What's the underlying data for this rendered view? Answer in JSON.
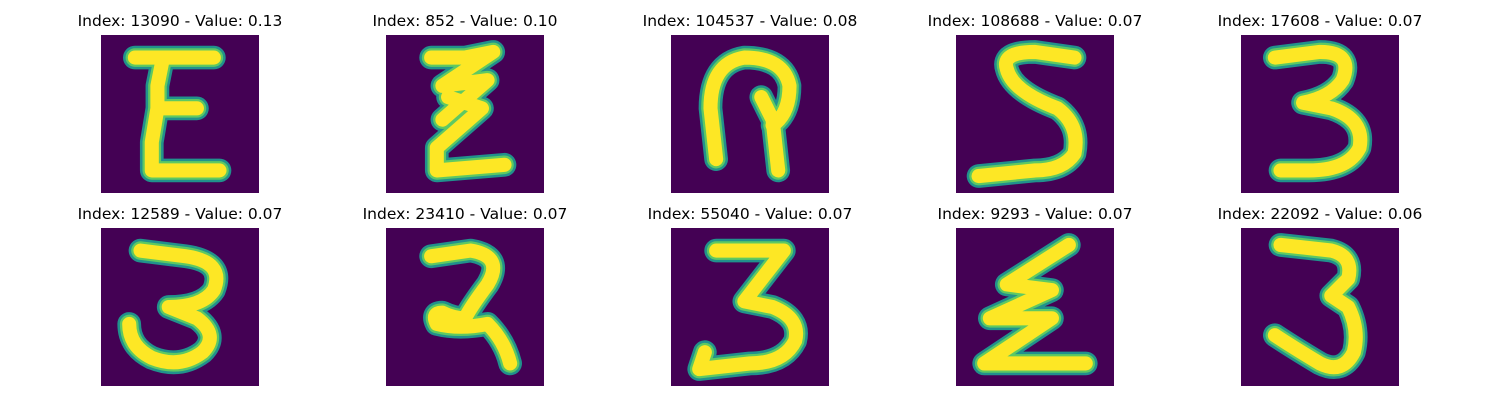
{
  "colors": {
    "background": "#440154",
    "stroke_outer": "#21918c",
    "stroke_mid": "#5ec962",
    "stroke_core": "#fde725"
  },
  "panels": [
    {
      "title": "Index: 13090 - Value: 0.13",
      "index": 13090,
      "value": 0.13,
      "glyph": "E"
    },
    {
      "title": "Index: 852 - Value: 0.10",
      "index": 852,
      "value": 0.1,
      "glyph": "zig-z"
    },
    {
      "title": "Index: 104537 - Value: 0.08",
      "index": 104537,
      "value": 0.08,
      "glyph": "hook"
    },
    {
      "title": "Index: 108688 - Value: 0.07",
      "index": 108688,
      "value": 0.07,
      "glyph": "S"
    },
    {
      "title": "Index: 17608 - Value: 0.07",
      "index": 17608,
      "value": 0.07,
      "glyph": "3"
    },
    {
      "title": "Index: 12589 - Value: 0.07",
      "index": 12589,
      "value": 0.07,
      "glyph": "3-round"
    },
    {
      "title": "Index: 23410 - Value: 0.07",
      "index": 23410,
      "value": 0.07,
      "glyph": "2-loop"
    },
    {
      "title": "Index: 55040 - Value: 0.07",
      "index": 55040,
      "value": 0.07,
      "glyph": "3-flat"
    },
    {
      "title": "Index: 9293 - Value: 0.07",
      "index": 9293,
      "value": 0.07,
      "glyph": "z-bolt"
    },
    {
      "title": "Index: 22092 - Value: 0.06",
      "index": 22092,
      "value": 0.06,
      "glyph": "3-j"
    }
  ]
}
